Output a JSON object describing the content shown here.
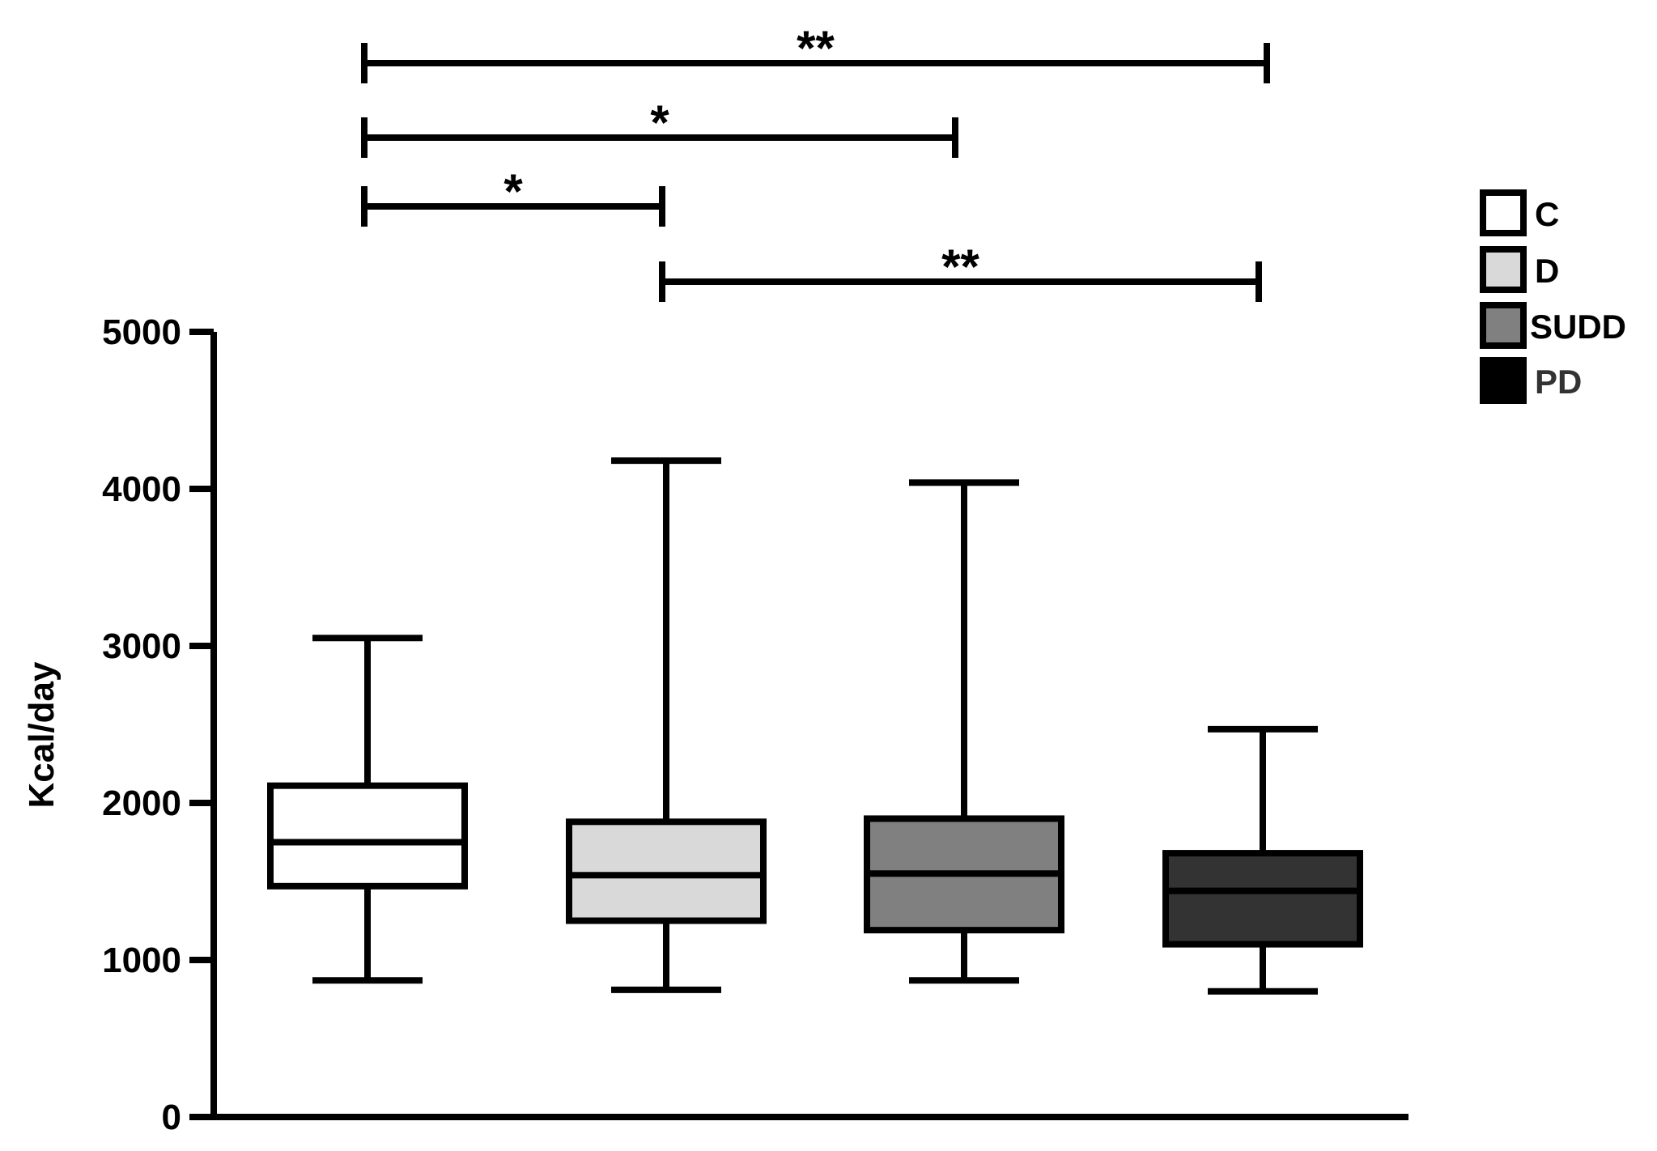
{
  "chart_data": {
    "type": "box",
    "title": "",
    "xlabel": "",
    "ylabel": "Kcal/day",
    "ylim": [
      0,
      5000
    ],
    "yticks": [
      0,
      1000,
      2000,
      3000,
      4000,
      5000
    ],
    "grid": false,
    "legend_position": "top-right",
    "series": [
      {
        "name": "C",
        "color": "#ffffff",
        "whisker_low": 870,
        "q1": 1470,
        "median": 1750,
        "q3": 2110,
        "whisker_high": 3050
      },
      {
        "name": "D",
        "color": "#d9d9d9",
        "whisker_low": 810,
        "q1": 1250,
        "median": 1540,
        "q3": 1880,
        "whisker_high": 4180
      },
      {
        "name": "SUDD",
        "color": "#808080",
        "whisker_low": 870,
        "q1": 1190,
        "median": 1550,
        "q3": 1900,
        "whisker_high": 4040
      },
      {
        "name": "PD",
        "color": "#333333",
        "whisker_low": 800,
        "q1": 1100,
        "median": 1440,
        "q3": 1680,
        "whisker_high": 2470
      }
    ],
    "legend_colors": [
      "#ffffff",
      "#d9d9d9",
      "#808080",
      "#000000"
    ],
    "legend_label_colors": [
      "#000000",
      "#000000",
      "#000000",
      "#333333"
    ],
    "significance": [
      {
        "from": 0,
        "to": 3,
        "label": "**"
      },
      {
        "from": 0,
        "to": 2,
        "label": "*"
      },
      {
        "from": 0,
        "to": 1,
        "label": "*"
      },
      {
        "from": 1,
        "to": 3,
        "label": "**"
      }
    ]
  }
}
